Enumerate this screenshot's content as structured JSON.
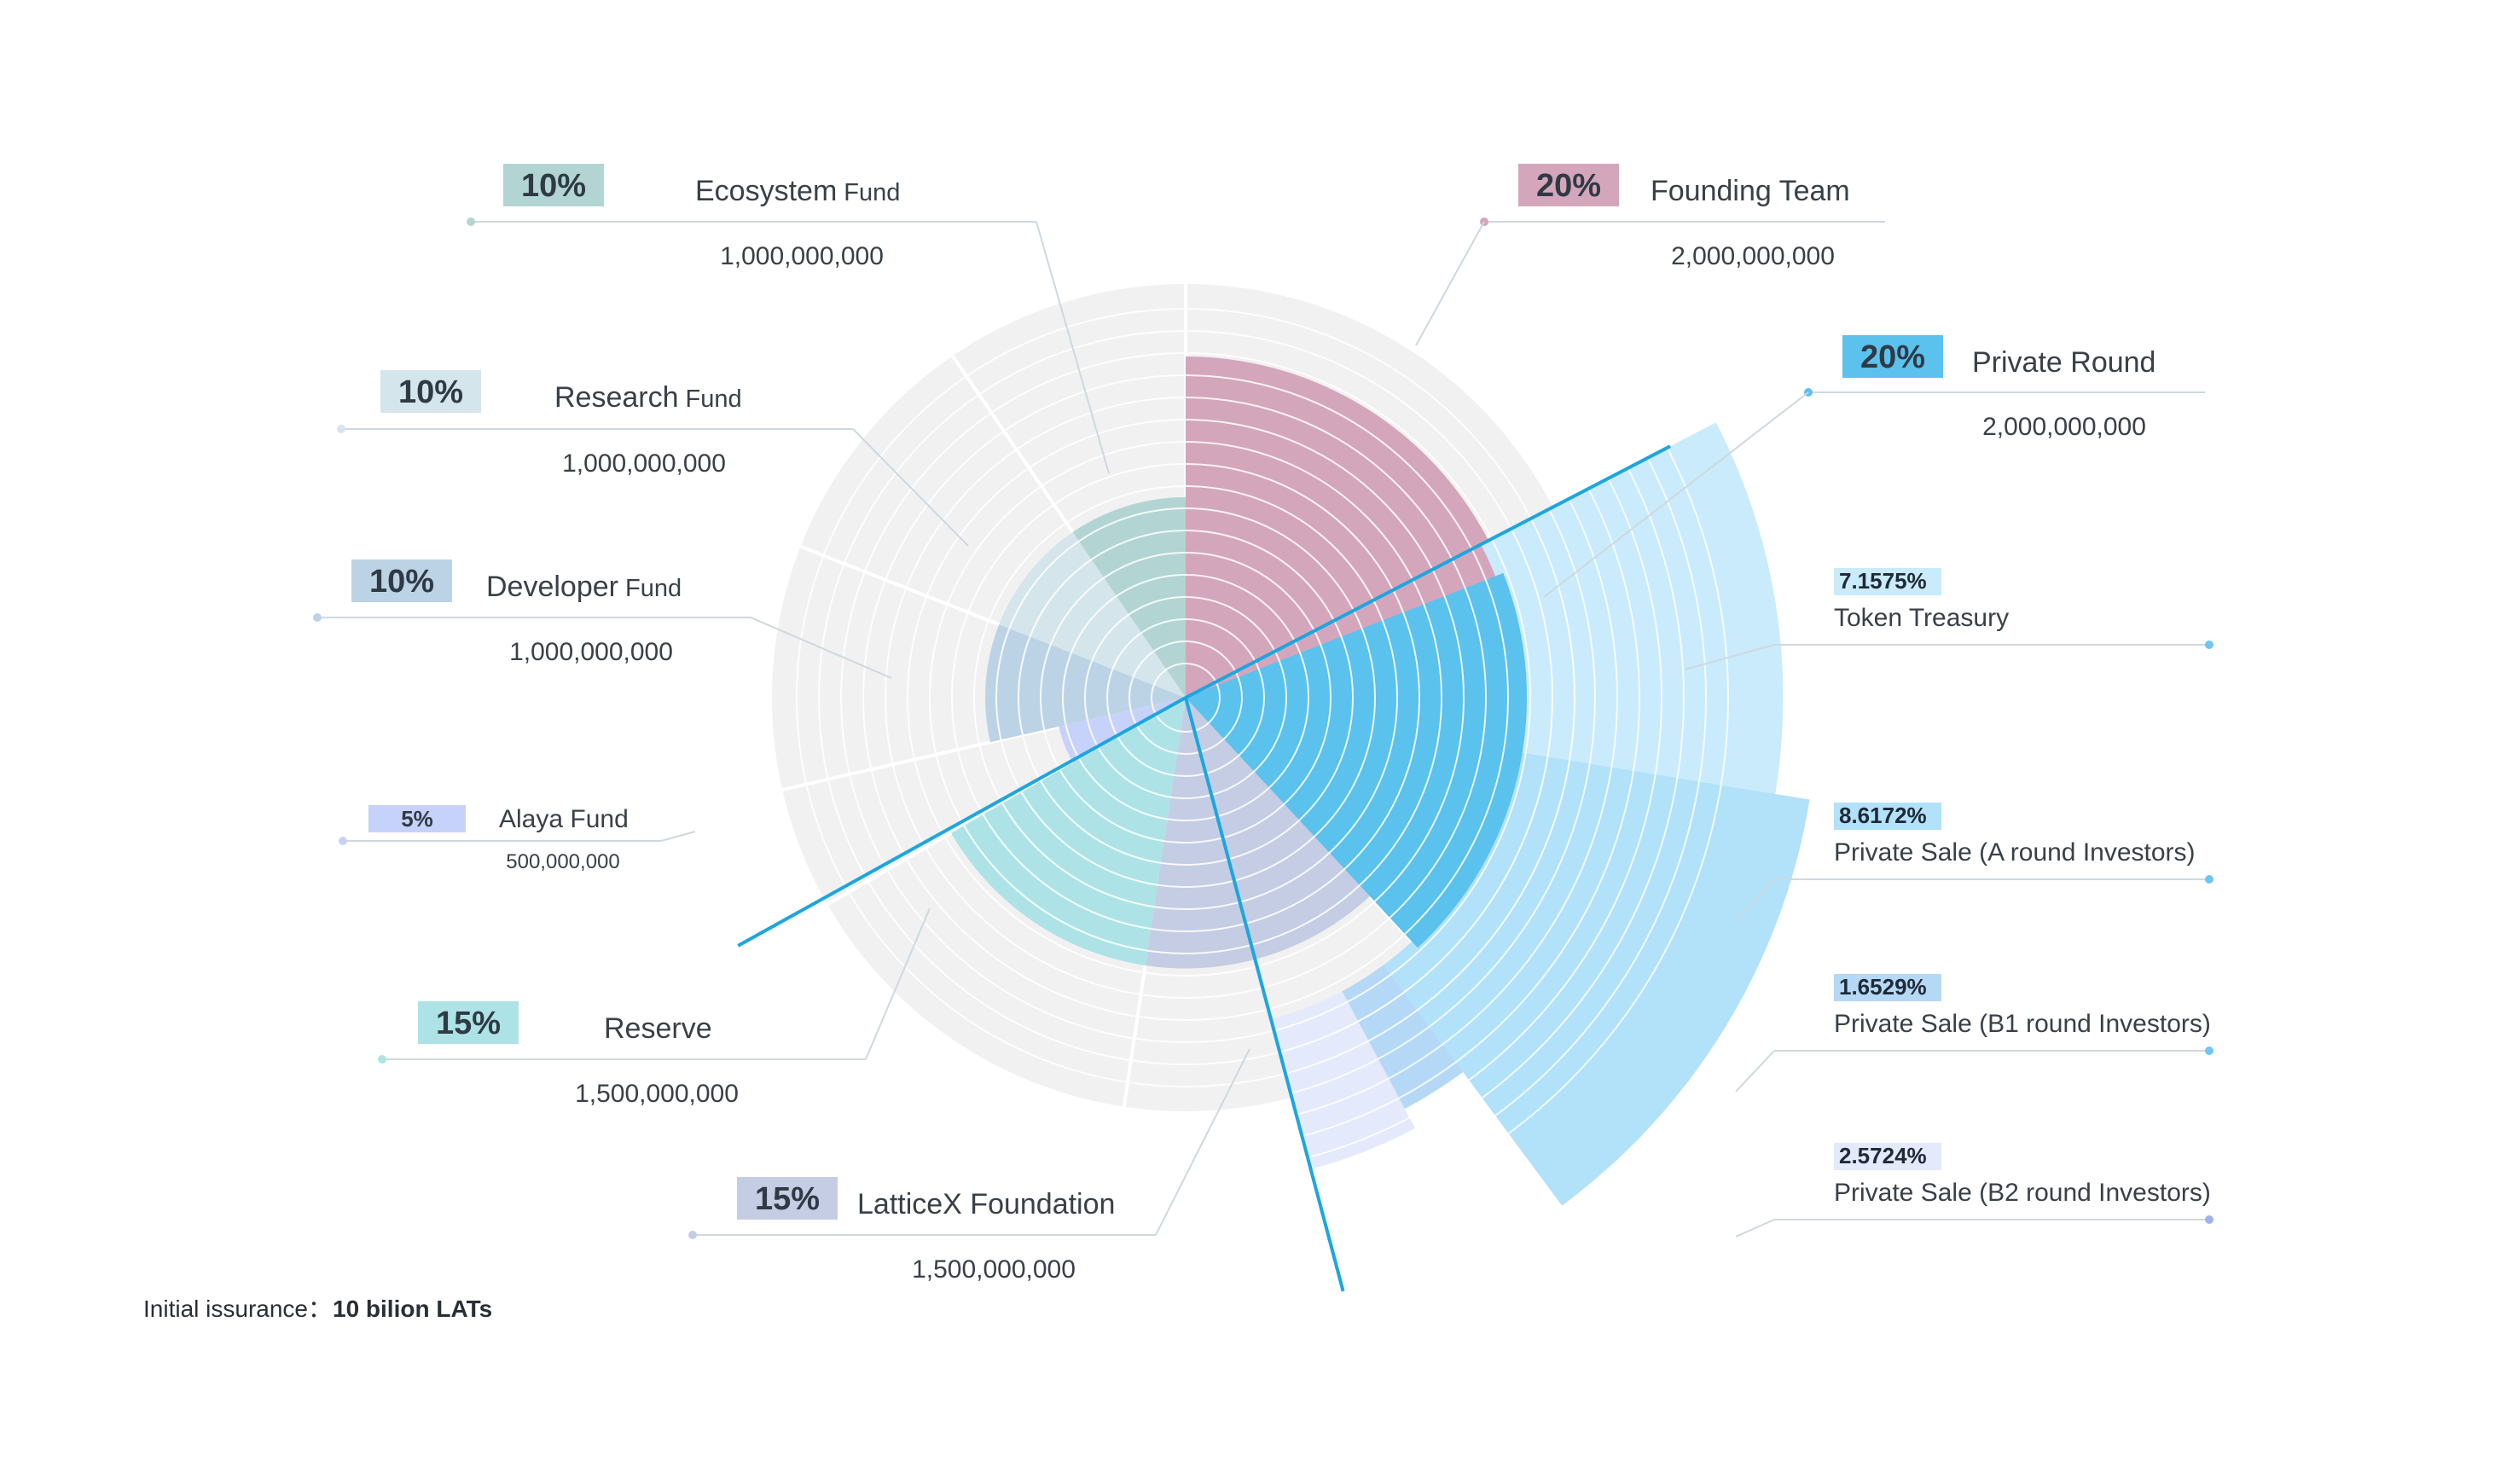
{
  "chart_data": {
    "type": "pie",
    "variant": "nightingale-rose",
    "footer": {
      "label": "Initial issurance：",
      "value": "10 bilion LATs"
    },
    "colors": {
      "background_ring": "#f1f1f1",
      "ring_line": "#ffffff",
      "leader_line": "#b8c4cc",
      "private_round_outline": "#1ca6e0"
    },
    "segments": [
      {
        "id": "founding-team",
        "percent_label": "20%",
        "name_main": "Founding Team",
        "name_suffix": "",
        "amount": "2,000,000,000",
        "percent": 20,
        "color": "#d4a6bb",
        "badge_color": "#d4a6bb"
      },
      {
        "id": "private-round",
        "percent_label": "20%",
        "name_main": "Private Round",
        "name_suffix": "",
        "amount": "2,000,000,000",
        "percent": 20,
        "color": "#5bc1ed",
        "badge_color": "#5bc1ed"
      },
      {
        "id": "latticex-foundation",
        "percent_label": "15%",
        "name_main": "LatticeX Foundation",
        "name_suffix": "",
        "amount": "1,500,000,000",
        "percent": 15,
        "color": "#c4cde3",
        "badge_color": "#c4cde3"
      },
      {
        "id": "reserve",
        "percent_label": "15%",
        "name_main": "Reserve",
        "name_suffix": "",
        "amount": "1,500,000,000",
        "percent": 15,
        "color": "#ade3e6",
        "badge_color": "#ade3e6"
      },
      {
        "id": "alaya-fund",
        "percent_label": "5%",
        "name_main": "Alaya Fund",
        "name_suffix": "",
        "amount": "500,000,000",
        "percent": 5,
        "color": "#c7d2fa",
        "badge_color": "#c7d2fa"
      },
      {
        "id": "developer-fund",
        "percent_label": "10%",
        "name_main": "Developer",
        "name_suffix": "Fund",
        "amount": "1,000,000,000",
        "percent": 10,
        "color": "#bcd3e6",
        "badge_color": "#bcd3e6"
      },
      {
        "id": "research-fund",
        "percent_label": "10%",
        "name_main": "Research",
        "name_suffix": "Fund",
        "amount": "1,000,000,000",
        "percent": 10,
        "color": "#d5e5ec",
        "badge_color": "#d5e5ec"
      },
      {
        "id": "ecosystem-fund",
        "percent_label": "10%",
        "name_main": "Ecosystem",
        "name_suffix": "Fund",
        "amount": "1,000,000,000",
        "percent": 10,
        "color": "#b2d5d3",
        "badge_color": "#b2d5d3"
      }
    ],
    "sub_segments": [
      {
        "id": "token-treasury",
        "percent_label": "7.1575%",
        "name": "Token Treasury",
        "percent": 7.1575,
        "color": "#c9ebfb"
      },
      {
        "id": "private-sale-a",
        "percent_label": "8.6172%",
        "name": "Private Sale (A round Investors)",
        "percent": 8.6172,
        "color": "#b2e1fa"
      },
      {
        "id": "private-sale-b1",
        "percent_label": "1.6529%",
        "name": "Private Sale (B1 round Investors)",
        "percent": 1.6529,
        "color": "#b5d8f7"
      },
      {
        "id": "private-sale-b2",
        "percent_label": "2.5724%",
        "name": "Private Sale (B2 round Investors)",
        "percent": 2.5724,
        "color": "#e4e9fb"
      }
    ]
  }
}
